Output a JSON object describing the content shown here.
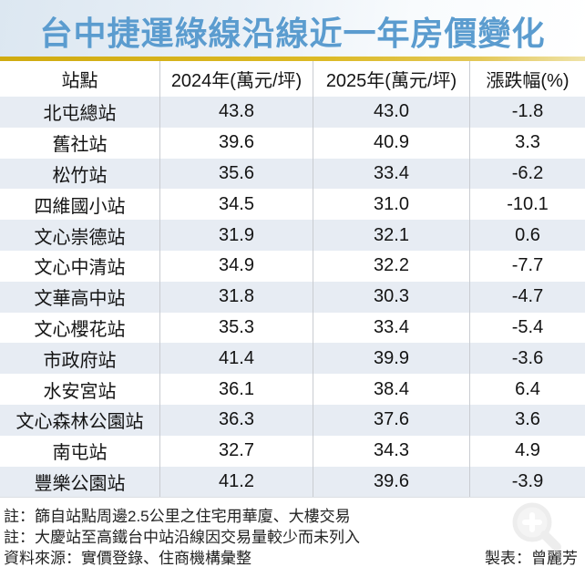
{
  "title": "台中捷運綠線沿線近一年房價變化",
  "colors": {
    "title_blue": "#5b9ccf",
    "divider_gold": "#d9b41e",
    "row_alt_blue": "#e7ecf3",
    "cell_border_gray": "#c9ccd1",
    "text_black": "#141414"
  },
  "chart_data": {
    "type": "table",
    "title": "台中捷運綠線沿線近一年房價變化",
    "columns": [
      "站點",
      "2024年(萬元/坪)",
      "2025年(萬元/坪)",
      "漲跌幅(%)"
    ],
    "rows": [
      {
        "station": "北屯總站",
        "y2024": 43.8,
        "y2025": 43.0,
        "change_pct": -1.8
      },
      {
        "station": "舊社站",
        "y2024": 39.6,
        "y2025": 40.9,
        "change_pct": 3.3
      },
      {
        "station": "松竹站",
        "y2024": 35.6,
        "y2025": 33.4,
        "change_pct": -6.2
      },
      {
        "station": "四維國小站",
        "y2024": 34.5,
        "y2025": 31.0,
        "change_pct": -10.1
      },
      {
        "station": "文心崇德站",
        "y2024": 31.9,
        "y2025": 32.1,
        "change_pct": 0.6
      },
      {
        "station": "文心中清站",
        "y2024": 34.9,
        "y2025": 32.2,
        "change_pct": -7.7
      },
      {
        "station": "文華高中站",
        "y2024": 31.8,
        "y2025": 30.3,
        "change_pct": -4.7
      },
      {
        "station": "文心櫻花站",
        "y2024": 35.3,
        "y2025": 33.4,
        "change_pct": -5.4
      },
      {
        "station": "市政府站",
        "y2024": 41.4,
        "y2025": 39.9,
        "change_pct": -3.6
      },
      {
        "station": "水安宮站",
        "y2024": 36.1,
        "y2025": 38.4,
        "change_pct": 6.4
      },
      {
        "station": "文心森林公園站",
        "y2024": 36.3,
        "y2025": 37.6,
        "change_pct": 3.6
      },
      {
        "station": "南屯站",
        "y2024": 32.7,
        "y2025": 34.3,
        "change_pct": 4.9
      },
      {
        "station": "豐樂公園站",
        "y2024": 41.2,
        "y2025": 39.6,
        "change_pct": -3.9
      }
    ],
    "value_decimals": 1,
    "layout": {
      "striped_rows": "odd-light-blue",
      "grid": "vertical-column-lines"
    }
  },
  "footer": {
    "notes": [
      "註：篩自站點周邊2.5公里之住宅用華廈、大樓交易",
      "註：大慶站至高鐵台中站沿線因交易量較少而未列入"
    ],
    "source": "資料來源：實價登錄、住商機構彙整",
    "credit": "製表：曾麗芳"
  },
  "icons": {
    "magnifier_zoom": "zoom-in-magnifier-watermark"
  }
}
